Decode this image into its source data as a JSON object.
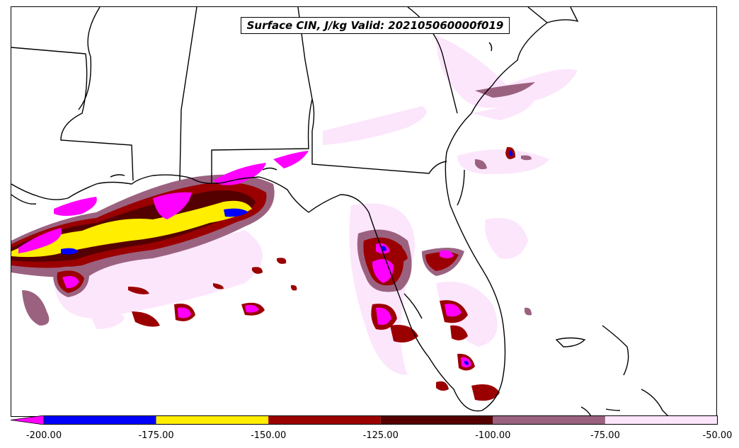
{
  "title": "Surface CIN, J/kg Valid: 202105060000f019",
  "colorbar": {
    "extend": "min",
    "under_color": "#ff00ff",
    "levels": [
      {
        "from": -200,
        "to": -175,
        "color": "#0000ff"
      },
      {
        "from": -175,
        "to": -150,
        "color": "#ffee00"
      },
      {
        "from": -150,
        "to": -125,
        "color": "#9b0000"
      },
      {
        "from": -125,
        "to": -100,
        "color": "#550000"
      },
      {
        "from": -100,
        "to": -75,
        "color": "#9b6280"
      },
      {
        "from": -75,
        "to": -50,
        "color": "#fce6fc"
      }
    ],
    "tick_labels": [
      "-200.00",
      "-175.00",
      "-150.00",
      "-125.00",
      "-100.00",
      "-75.00",
      "-50.00"
    ]
  },
  "map": {
    "region": "Florida and northern Gulf of Mexico",
    "background": "#ffffff",
    "boundary_color": "#000000"
  }
}
